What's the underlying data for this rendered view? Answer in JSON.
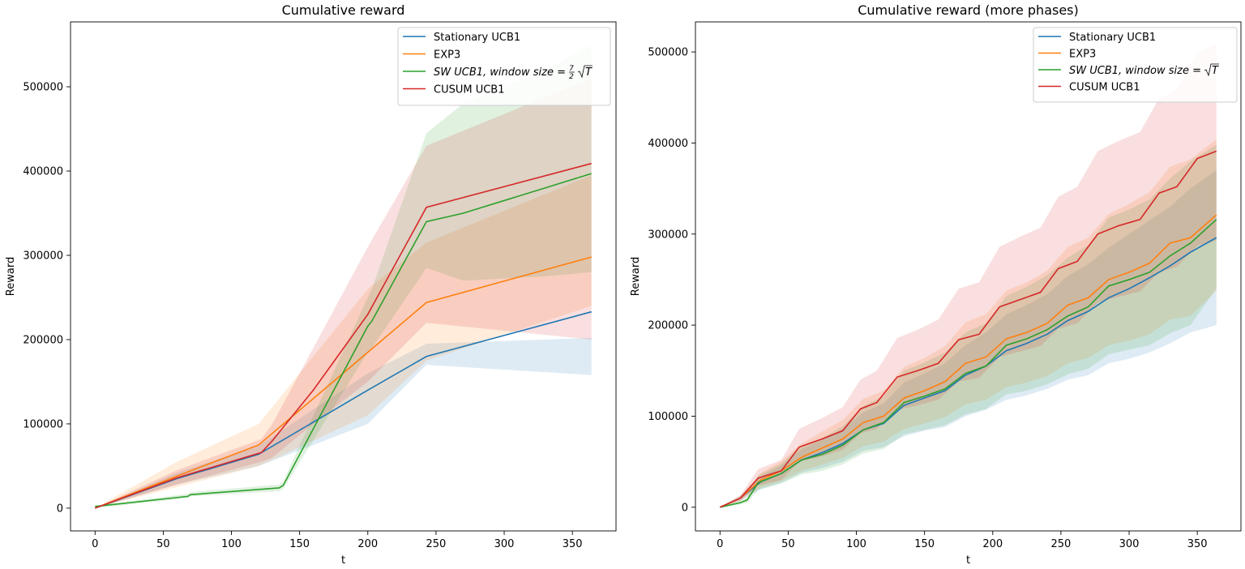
{
  "chart_data": [
    {
      "type": "line",
      "title": "Cumulative reward",
      "xlabel": "t",
      "ylabel": "Reward",
      "xlim": [
        -18,
        382
      ],
      "ylim": [
        -27000,
        577000
      ],
      "xticks": [
        0,
        50,
        100,
        150,
        200,
        250,
        300,
        350
      ],
      "xtick_labels": [
        "0",
        "50",
        "100",
        "150",
        "200",
        "250",
        "300",
        "350"
      ],
      "yticks": [
        0,
        100000,
        200000,
        300000,
        400000,
        500000
      ],
      "ytick_labels": [
        "0",
        "100000",
        "200000",
        "300000",
        "400000",
        "500000"
      ],
      "legend_position": "top-right",
      "grid": false,
      "series": [
        {
          "name": "Stationary UCB1",
          "color": "#1f77b4",
          "x": [
            0,
            60,
            120,
            200,
            243,
            364
          ],
          "y": [
            0,
            35000,
            64000,
            140000,
            180000,
            233000
          ],
          "band_low": [
            0,
            28000,
            50000,
            100000,
            170000,
            158000
          ],
          "band_high": [
            0,
            42000,
            74000,
            160000,
            195000,
            202000
          ]
        },
        {
          "name": "EXP3",
          "color": "#ff7f0e",
          "x": [
            0,
            60,
            120,
            200,
            243,
            364
          ],
          "y": [
            0,
            38000,
            75000,
            185000,
            244000,
            298000
          ],
          "band_low": [
            0,
            25000,
            50000,
            110000,
            175000,
            240000
          ],
          "band_high": [
            0,
            55000,
            100000,
            260000,
            315000,
            395000
          ]
        },
        {
          "name": "SW UCB1, window size = 7/2 √T",
          "name_parts": {
            "main": "SW UCB1, window size =",
            "frac_num": "7",
            "frac_den": "2",
            "root": "T"
          },
          "color": "#2ca02c",
          "x": [
            0,
            68,
            70,
            135,
            138,
            200,
            203,
            243,
            270,
            330,
            364
          ],
          "y": [
            2000,
            14000,
            16000,
            24000,
            27000,
            216000,
            222000,
            340000,
            350000,
            380000,
            397000
          ],
          "band_low": [
            0,
            12000,
            14000,
            20000,
            23000,
            185000,
            190000,
            285000,
            270000,
            275000,
            280000
          ],
          "band_high": [
            3000,
            17000,
            19000,
            28000,
            32000,
            250000,
            260000,
            445000,
            480000,
            520000,
            550000
          ]
        },
        {
          "name": "CUSUM UCB1",
          "color": "#d62728",
          "x": [
            0,
            60,
            122,
            130,
            160,
            200,
            243,
            364
          ],
          "y": [
            0,
            36000,
            66000,
            80000,
            140000,
            230000,
            357000,
            409000
          ],
          "band_low": [
            0,
            28000,
            55000,
            60000,
            100000,
            150000,
            220000,
            200000
          ],
          "band_high": [
            0,
            45000,
            82000,
            100000,
            190000,
            310000,
            430000,
            510000
          ]
        }
      ]
    },
    {
      "type": "line",
      "title": "Cumulative reward (more phases)",
      "xlabel": "t",
      "ylabel": "Reward",
      "xlim": [
        -18,
        382
      ],
      "ylim": [
        -26000,
        533000
      ],
      "xticks": [
        0,
        50,
        100,
        150,
        200,
        250,
        300,
        350
      ],
      "xtick_labels": [
        "0",
        "50",
        "100",
        "150",
        "200",
        "250",
        "300",
        "350"
      ],
      "yticks": [
        0,
        100000,
        200000,
        300000,
        400000,
        500000
      ],
      "ytick_labels": [
        "0",
        "100000",
        "200000",
        "300000",
        "400000",
        "500000"
      ],
      "legend_position": "top-right",
      "grid": false,
      "series": [
        {
          "name": "Stationary UCB1",
          "color": "#1f77b4",
          "x": [
            0,
            15,
            30,
            45,
            60,
            75,
            90,
            105,
            120,
            135,
            150,
            165,
            180,
            195,
            210,
            225,
            240,
            255,
            270,
            285,
            300,
            315,
            330,
            345,
            364
          ],
          "y": [
            0,
            10000,
            28000,
            37000,
            52000,
            60000,
            70000,
            85000,
            92000,
            112000,
            120000,
            128000,
            145000,
            155000,
            172000,
            180000,
            190000,
            205000,
            215000,
            230000,
            240000,
            252000,
            265000,
            280000,
            296000
          ],
          "band_low": [
            0,
            7000,
            20000,
            27000,
            38000,
            43000,
            50000,
            62000,
            66000,
            78000,
            84000,
            88000,
            100000,
            107000,
            118000,
            123000,
            130000,
            140000,
            145000,
            158000,
            163000,
            170000,
            180000,
            192000,
            200000
          ],
          "band_high": [
            0,
            13000,
            34000,
            46000,
            64000,
            74000,
            86000,
            104000,
            114000,
            137000,
            147000,
            158000,
            178000,
            192000,
            212000,
            222000,
            234000,
            254000,
            267000,
            285000,
            300000,
            315000,
            330000,
            350000,
            370000
          ]
        },
        {
          "name": "EXP3",
          "color": "#ff7f0e",
          "x": [
            0,
            15,
            30,
            45,
            60,
            75,
            90,
            105,
            120,
            135,
            150,
            165,
            180,
            195,
            210,
            225,
            240,
            255,
            270,
            285,
            300,
            315,
            330,
            345,
            364
          ],
          "y": [
            0,
            10000,
            30000,
            40000,
            55000,
            65000,
            75000,
            93000,
            100000,
            120000,
            128000,
            138000,
            158000,
            165000,
            185000,
            192000,
            202000,
            222000,
            230000,
            250000,
            258000,
            268000,
            290000,
            296000,
            321000
          ],
          "band_low": [
            0,
            7000,
            22000,
            29000,
            40000,
            47000,
            54000,
            67000,
            72000,
            86000,
            92000,
            99000,
            113000,
            118000,
            132000,
            137000,
            144000,
            158000,
            164000,
            178000,
            183000,
            190000,
            206000,
            210000,
            238000
          ],
          "band_high": [
            0,
            13000,
            38000,
            51000,
            70000,
            83000,
            96000,
            119000,
            128000,
            154000,
            164000,
            177000,
            203000,
            212000,
            238000,
            247000,
            260000,
            286000,
            296000,
            322000,
            333000,
            346000,
            374000,
            382000,
            404000
          ]
        },
        {
          "name": "SW UCB1, window size = √T",
          "name_parts": {
            "main": "SW UCB1, window size =",
            "root": "T"
          },
          "color": "#2ca02c",
          "x": [
            0,
            15,
            20,
            28,
            45,
            60,
            75,
            90,
            105,
            120,
            135,
            150,
            165,
            180,
            195,
            210,
            225,
            240,
            255,
            270,
            285,
            300,
            315,
            330,
            345,
            364
          ],
          "y": [
            0,
            5000,
            8000,
            27000,
            37000,
            52000,
            58000,
            68000,
            85000,
            93000,
            115000,
            122000,
            130000,
            147000,
            155000,
            178000,
            185000,
            195000,
            210000,
            220000,
            243000,
            250000,
            258000,
            276000,
            290000,
            316000
          ],
          "band_low": [
            0,
            3000,
            5000,
            19000,
            26000,
            36000,
            40000,
            47000,
            59000,
            64000,
            80000,
            85000,
            90000,
            102000,
            108000,
            124000,
            128000,
            135000,
            146000,
            152000,
            168000,
            173000,
            178000,
            191000,
            200000,
            240000
          ],
          "band_high": [
            0,
            7000,
            11000,
            35000,
            48000,
            68000,
            76000,
            89000,
            111000,
            122000,
            150000,
            159000,
            170000,
            192000,
            202000,
            232000,
            242000,
            255000,
            274000,
            288000,
            318000,
            327000,
            338000,
            361000,
            380000,
            398000
          ]
        },
        {
          "name": "CUSUM UCB1",
          "color": "#d62728",
          "x": [
            0,
            15,
            28,
            45,
            58,
            75,
            90,
            103,
            115,
            130,
            145,
            160,
            175,
            190,
            205,
            220,
            235,
            248,
            262,
            277,
            292,
            308,
            322,
            335,
            350,
            364
          ],
          "y": [
            0,
            10000,
            32000,
            40000,
            66000,
            75000,
            84000,
            108000,
            115000,
            143000,
            150000,
            158000,
            184000,
            190000,
            220000,
            228000,
            236000,
            262000,
            270000,
            300000,
            309000,
            316000,
            345000,
            352000,
            383000,
            391000
          ],
          "band_low": [
            0,
            7000,
            24000,
            30000,
            50000,
            56000,
            63000,
            81000,
            86000,
            107000,
            112000,
            118000,
            138000,
            142000,
            165000,
            171000,
            177000,
            196000,
            202000,
            225000,
            231000,
            237000,
            258000,
            264000,
            287000,
            293000
          ],
          "band_high": [
            0,
            13000,
            42000,
            52000,
            86000,
            98000,
            110000,
            140000,
            150000,
            186000,
            195000,
            206000,
            240000,
            247000,
            286000,
            297000,
            307000,
            341000,
            352000,
            391000,
            402000,
            412000,
            449000,
            458000,
            498000,
            510000
          ]
        }
      ]
    }
  ]
}
